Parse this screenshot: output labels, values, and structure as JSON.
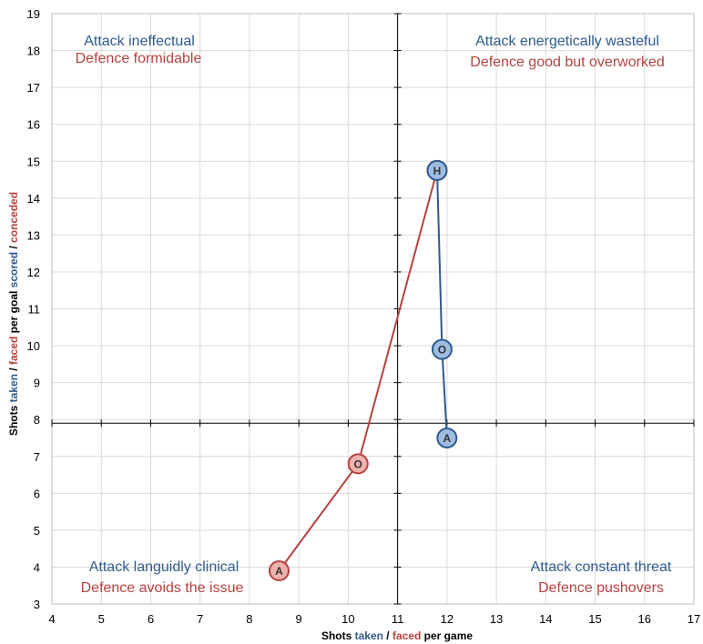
{
  "chart_data": {
    "type": "scatter",
    "title": "",
    "xlim": [
      4,
      17
    ],
    "ylim": [
      3,
      19
    ],
    "x_ticks": [
      "4",
      "5",
      "6",
      "7",
      "8",
      "9",
      "10",
      "11",
      "12",
      "13",
      "14",
      "15",
      "16",
      "17"
    ],
    "y_ticks": [
      "3",
      "4",
      "5",
      "6",
      "7",
      "8",
      "9",
      "10",
      "11",
      "12",
      "13",
      "14",
      "15",
      "16",
      "17",
      "18",
      "19"
    ],
    "grid": true,
    "crosshair": {
      "x": 11,
      "y": 7.9
    },
    "xlabel": {
      "p1": "Shots ",
      "p2": "taken",
      "p3": " / ",
      "p4": "faced",
      "p5": " per game"
    },
    "ylabel": {
      "p1": "Shots ",
      "p2": "taken",
      "p3": " / ",
      "p4": "faced",
      "p5": " per goal ",
      "p6": "scored",
      "p7": " / ",
      "p8": "conceded"
    },
    "colors": {
      "attack": "#2e5a8c",
      "defence": "#b5423e",
      "attack_fill": "#9fbde0",
      "defence_fill": "#f0b2ad",
      "grid": "#d9d9d9",
      "axis": "#000000"
    },
    "series": [
      {
        "role": "attack",
        "points": [
          {
            "label": "H",
            "x": 11.8,
            "y": 14.75
          },
          {
            "label": "O",
            "x": 11.9,
            "y": 9.9
          },
          {
            "label": "A",
            "x": 12.0,
            "y": 7.5
          }
        ]
      },
      {
        "role": "defence",
        "points": [
          {
            "label": "H",
            "x": 11.8,
            "y": 14.75
          },
          {
            "label": "O",
            "x": 10.2,
            "y": 6.8
          },
          {
            "label": "A",
            "x": 8.6,
            "y": 3.9
          }
        ]
      }
    ],
    "quadrants": {
      "top_left": {
        "attack": "Attack ineffectual",
        "defence": "Defence formidable"
      },
      "top_right": {
        "attack": "Attack energetically wasteful",
        "defence": "Defence good but overworked"
      },
      "bottom_left": {
        "attack": "Attack languidly clinical",
        "defence": "Defence avoids the issue"
      },
      "bottom_right": {
        "attack": "Attack constant threat",
        "defence": "Defence pushovers"
      }
    }
  }
}
